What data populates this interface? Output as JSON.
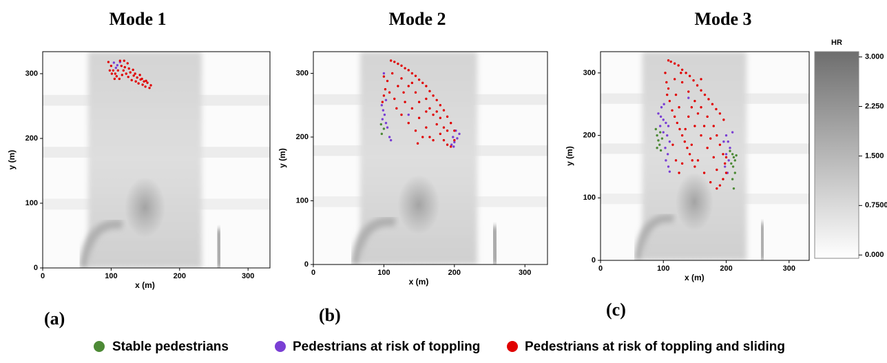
{
  "chart_data": [
    {
      "type": "scatter",
      "title": "Mode 1",
      "panel_label": "(a)",
      "x_label": "x (m)",
      "y_label": "y (m)",
      "xlim": [
        0,
        332
      ],
      "ylim": [
        0,
        334
      ],
      "xticks": [
        0,
        100,
        200,
        300
      ],
      "yticks": [
        0,
        100,
        200,
        300
      ],
      "series": [
        {
          "name": "Stable pedestrians",
          "color": "#4d8a36",
          "x": [],
          "y": []
        },
        {
          "name": "Pedestrians at risk of toppling",
          "color": "#7a3fd4",
          "x": [
            104,
            109,
            113,
            107
          ],
          "y": [
            317,
            313,
            318,
            309
          ]
        },
        {
          "name": "Pedestrians at risk of toppling and sliding",
          "color": "#e00000",
          "x": [
            96,
            100,
            103,
            106,
            108,
            112,
            116,
            118,
            120,
            122,
            125,
            128,
            130,
            133,
            136,
            138,
            140,
            143,
            146,
            148,
            150,
            153,
            156,
            158,
            101,
            110,
            115,
            124,
            126,
            132,
            135,
            142,
            98,
            105,
            119,
            113,
            145,
            151
          ],
          "y": [
            318,
            312,
            305,
            300,
            296,
            292,
            298,
            305,
            310,
            300,
            295,
            302,
            290,
            297,
            288,
            294,
            285,
            291,
            283,
            288,
            280,
            286,
            278,
            282,
            300,
            305,
            312,
            316,
            308,
            306,
            300,
            298,
            305,
            292,
            320,
            320,
            292,
            289
          ]
        }
      ]
    },
    {
      "type": "scatter",
      "title": "Mode 2",
      "panel_label": "(b)",
      "x_label": "x (m)",
      "y_label": "y (m)",
      "xlim": [
        0,
        332
      ],
      "ylim": [
        0,
        334
      ],
      "xticks": [
        0,
        100,
        200,
        300
      ],
      "yticks": [
        0,
        100,
        200,
        300
      ],
      "series": [
        {
          "name": "Stable pedestrians",
          "color": "#4d8a36",
          "x": [
            97,
            100,
            96
          ],
          "y": [
            205,
            213,
            220
          ]
        },
        {
          "name": "Pedestrians at risk of toppling",
          "color": "#7a3fd4",
          "x": [
            97,
            99,
            101,
            98,
            103,
            105,
            108,
            110,
            100,
            196,
            200,
            204,
            207,
            202,
            198,
            199,
            135,
            103
          ],
          "y": [
            250,
            242,
            235,
            228,
            222,
            215,
            200,
            195,
            300,
            188,
            192,
            198,
            205,
            210,
            200,
            185,
            235,
            258
          ]
        },
        {
          "name": "Pedestrians at risk of toppling and sliding",
          "color": "#e00000",
          "x": [
            110,
            115,
            120,
            125,
            130,
            135,
            140,
            145,
            150,
            155,
            160,
            165,
            170,
            175,
            180,
            185,
            190,
            195,
            200,
            100,
            105,
            102,
            100,
            98,
            108,
            115,
            120,
            125,
            135,
            145,
            150,
            160,
            165,
            170,
            175,
            180,
            185,
            190,
            195,
            160,
            150,
            140,
            130,
            125,
            135,
            155,
            170,
            145,
            118,
            112,
            128,
            140,
            180,
            190,
            200,
            165,
            148,
            185,
            175,
            160
          ],
          "y": [
            320,
            318,
            315,
            312,
            308,
            305,
            300,
            296,
            290,
            285,
            280,
            272,
            265,
            258,
            250,
            242,
            232,
            222,
            210,
            295,
            288,
            275,
            265,
            255,
            270,
            260,
            280,
            292,
            280,
            270,
            255,
            260,
            245,
            235,
            220,
            205,
            195,
            188,
            185,
            215,
            230,
            245,
            255,
            235,
            222,
            200,
            195,
            210,
            245,
            300,
            270,
            285,
            230,
            210,
            195,
            200,
            190,
            215,
            240,
            240
          ]
        }
      ]
    },
    {
      "type": "scatter",
      "title": "Mode 3",
      "panel_label": "(c)",
      "x_label": "x (m)",
      "y_label": "y (m)",
      "xlim": [
        0,
        332
      ],
      "ylim": [
        0,
        334
      ],
      "xticks": [
        0,
        100,
        200,
        300
      ],
      "yticks": [
        0,
        100,
        200,
        300
      ],
      "series": [
        {
          "name": "Stable pedestrians",
          "color": "#4d8a36",
          "x": [
            88,
            90,
            92,
            94,
            90,
            96,
            98,
            95,
            206,
            210,
            212,
            214,
            208,
            211,
            214,
            210,
            212,
            216
          ],
          "y": [
            210,
            200,
            192,
            185,
            180,
            176,
            195,
            205,
            175,
            170,
            165,
            160,
            155,
            150,
            140,
            130,
            115,
            168
          ]
        },
        {
          "name": "Pedestrians at risk of toppling",
          "color": "#7a3fd4",
          "x": [
            92,
            96,
            100,
            104,
            108,
            95,
            100,
            106,
            110,
            103,
            107,
            104,
            108,
            110,
            97,
            101,
            200,
            203,
            206,
            200,
            204,
            198,
            202,
            196,
            140,
            210
          ],
          "y": [
            235,
            230,
            225,
            220,
            215,
            215,
            205,
            200,
            190,
            180,
            170,
            160,
            150,
            142,
            245,
            250,
            200,
            190,
            180,
            170,
            160,
            150,
            140,
            190,
            260,
            205
          ]
        },
        {
          "name": "Pedestrians at risk of toppling and sliding",
          "color": "#e00000",
          "x": [
            108,
            112,
            118,
            124,
            130,
            136,
            142,
            148,
            154,
            160,
            166,
            172,
            178,
            184,
            190,
            196,
            103,
            105,
            108,
            106,
            110,
            114,
            118,
            122,
            126,
            130,
            134,
            138,
            142,
            146,
            150,
            120,
            130,
            140,
            150,
            160,
            170,
            180,
            185,
            190,
            195,
            198,
            200,
            195,
            190,
            185,
            175,
            165,
            155,
            145,
            135,
            125,
            140,
            160,
            170,
            180,
            120,
            125,
            115,
            130,
            150,
            165,
            155,
            175,
            185,
            145,
            118,
            128,
            160,
            200
          ],
          "y": [
            320,
            318,
            315,
            312,
            305,
            300,
            295,
            288,
            280,
            272,
            265,
            258,
            250,
            242,
            235,
            225,
            300,
            285,
            275,
            265,
            255,
            240,
            230,
            220,
            210,
            200,
            190,
            180,
            170,
            160,
            150,
            265,
            285,
            270,
            255,
            245,
            230,
            215,
            200,
            185,
            170,
            155,
            140,
            130,
            120,
            115,
            125,
            140,
            160,
            185,
            210,
            245,
            230,
            200,
            180,
            165,
            160,
            140,
            185,
            155,
            215,
            215,
            235,
            195,
            145,
            245,
            290,
            300,
            290,
            165
          ]
        }
      ],
      "colorbar": {
        "title": "HR",
        "lim": [
          -0.05,
          3.08
        ],
        "ticks": [
          {
            "value": 3,
            "label": "3.000"
          },
          {
            "value": 2.25,
            "label": "2.250"
          },
          {
            "value": 1.5,
            "label": "1.500"
          },
          {
            "value": 0.75,
            "label": "0.7500"
          },
          {
            "value": 0,
            "label": "0.000"
          }
        ]
      }
    }
  ]
}
